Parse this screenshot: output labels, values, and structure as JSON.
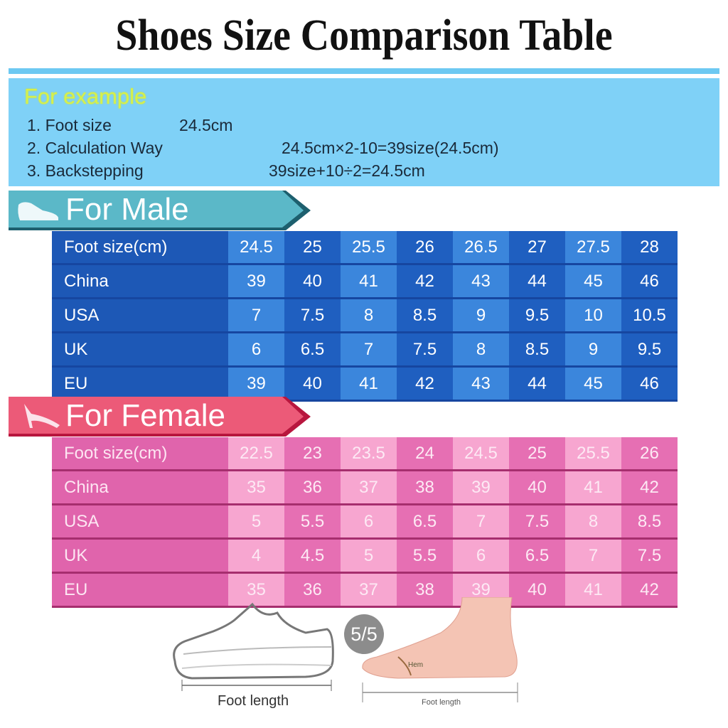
{
  "title": "Shoes Size Comparison Table",
  "example": {
    "heading": "For example",
    "lines": [
      {
        "label": "1. Foot size",
        "value": "24.5cm"
      },
      {
        "label": "2. Calculation Way",
        "value": "24.5cm×2-10=39size(24.5cm)"
      },
      {
        "label": "3. Backstepping",
        "value": "39size+10÷2=24.5cm"
      }
    ]
  },
  "male": {
    "heading": "For Male",
    "icon": "mens-shoe-icon",
    "color": "#1d58b6",
    "rows": [
      {
        "label": "Foot size(cm)",
        "values": [
          "24.5",
          "25",
          "25.5",
          "26",
          "26.5",
          "27",
          "27.5",
          "28"
        ]
      },
      {
        "label": "China",
        "values": [
          "39",
          "40",
          "41",
          "42",
          "43",
          "44",
          "45",
          "46"
        ]
      },
      {
        "label": "USA",
        "values": [
          "7",
          "7.5",
          "8",
          "8.5",
          "9",
          "9.5",
          "10",
          "10.5"
        ]
      },
      {
        "label": "UK",
        "values": [
          "6",
          "6.5",
          "7",
          "7.5",
          "8",
          "8.5",
          "9",
          "9.5"
        ]
      },
      {
        "label": "EU",
        "values": [
          "39",
          "40",
          "41",
          "42",
          "43",
          "44",
          "45",
          "46"
        ]
      }
    ]
  },
  "female": {
    "heading": "For Female",
    "icon": "high-heel-icon",
    "color": "#e064ac",
    "rows": [
      {
        "label": "Foot size(cm)",
        "values": [
          "22.5",
          "23",
          "23.5",
          "24",
          "24.5",
          "25",
          "25.5",
          "26"
        ]
      },
      {
        "label": "China",
        "values": [
          "35",
          "36",
          "37",
          "38",
          "39",
          "40",
          "41",
          "42"
        ]
      },
      {
        "label": "USA",
        "values": [
          "5",
          "5.5",
          "6",
          "6.5",
          "7",
          "7.5",
          "8",
          "8.5"
        ]
      },
      {
        "label": "UK",
        "values": [
          "4",
          "4.5",
          "5",
          "5.5",
          "6",
          "6.5",
          "7",
          "7.5"
        ]
      },
      {
        "label": "EU",
        "values": [
          "35",
          "36",
          "37",
          "38",
          "39",
          "40",
          "41",
          "42"
        ]
      }
    ]
  },
  "illustration": {
    "shoe_caption": "Foot length",
    "foot_caption": "Foot length",
    "foot_label": "Hem"
  },
  "badge": "5/5"
}
